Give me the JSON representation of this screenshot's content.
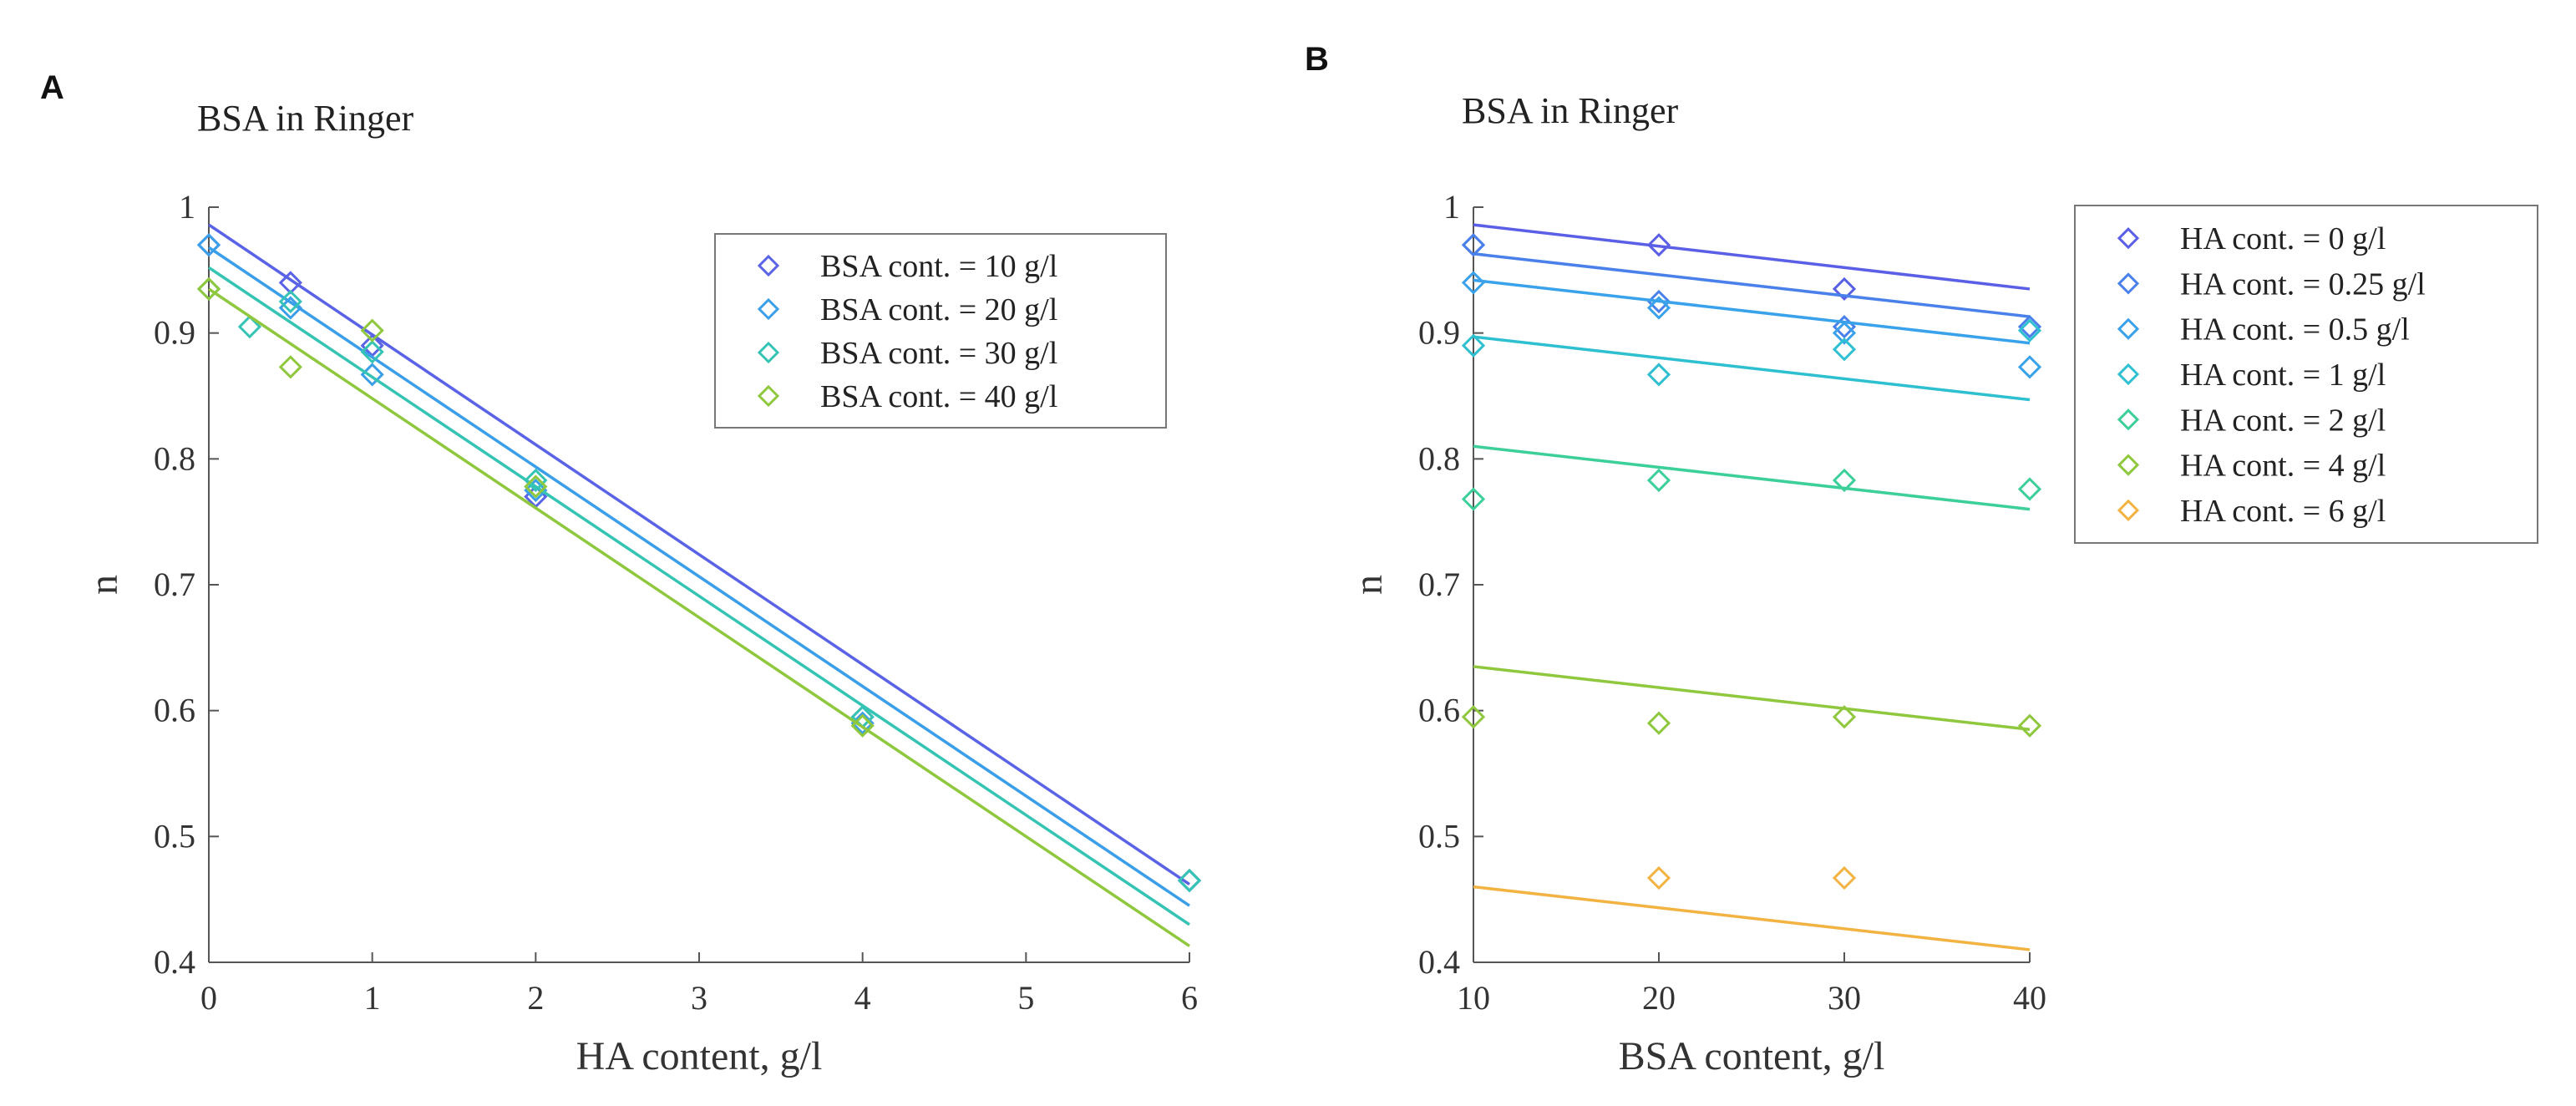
{
  "chart_data": [
    {
      "panel": "A",
      "type": "scatter",
      "title": "BSA in Ringer",
      "xlabel": "HA content, g/l",
      "ylabel": "n",
      "xlim": [
        0,
        6
      ],
      "ylim": [
        0.4,
        1
      ],
      "xticks": [
        "0",
        "1",
        "2",
        "3",
        "4",
        "5",
        "6"
      ],
      "yticks": [
        "0.4",
        "0.5",
        "0.6",
        "0.7",
        "0.8",
        "0.9",
        "1"
      ],
      "grid": false,
      "legend_position": "top-right",
      "series": [
        {
          "name": "BSA cont. = 10 g/l",
          "color": "#5a63e6",
          "points": [
            [
              0,
              0.97
            ],
            [
              0.5,
              0.94
            ],
            [
              1,
              0.89
            ],
            [
              2,
              0.77
            ],
            [
              4,
              0.595
            ],
            [
              6,
              0.465
            ]
          ],
          "fit": [
            [
              0,
              0.986
            ],
            [
              6,
              0.462
            ]
          ]
        },
        {
          "name": "BSA cont. = 20 g/l",
          "color": "#3a9ee8",
          "points": [
            [
              0,
              0.97
            ],
            [
              0.5,
              0.92
            ],
            [
              1,
              0.867
            ],
            [
              2,
              0.775
            ],
            [
              4,
              0.59
            ],
            [
              6,
              0.465
            ]
          ],
          "fit": [
            [
              0,
              0.968
            ],
            [
              6,
              0.445
            ]
          ]
        },
        {
          "name": "BSA cont. = 30 g/l",
          "color": "#35c4b4",
          "points": [
            [
              0,
              0.935
            ],
            [
              0.25,
              0.905
            ],
            [
              0.5,
              0.925
            ],
            [
              1,
              0.885
            ],
            [
              2,
              0.783
            ],
            [
              4,
              0.595
            ],
            [
              6,
              0.465
            ]
          ],
          "fit": [
            [
              0,
              0.952
            ],
            [
              6,
              0.43
            ]
          ]
        },
        {
          "name": "BSA cont. = 40 g/l",
          "color": "#8fc83e",
          "points": [
            [
              0,
              0.935
            ],
            [
              0.5,
              0.873
            ],
            [
              1,
              0.902
            ],
            [
              2,
              0.778
            ],
            [
              4,
              0.588
            ]
          ],
          "fit": [
            [
              0,
              0.935
            ],
            [
              6,
              0.413
            ]
          ]
        }
      ]
    },
    {
      "panel": "B",
      "type": "scatter",
      "title": "BSA in Ringer",
      "xlabel": "BSA content, g/l",
      "ylabel": "n",
      "xlim": [
        10,
        40
      ],
      "ylim": [
        0.4,
        1
      ],
      "xticks": [
        "10",
        "20",
        "30",
        "40"
      ],
      "yticks": [
        "0.4",
        "0.5",
        "0.6",
        "0.7",
        "0.8",
        "0.9",
        "1"
      ],
      "grid": false,
      "legend_position": "outside-right",
      "series": [
        {
          "name": "HA cont. = 0 g/l",
          "color": "#5a5fe6",
          "points": [
            [
              10,
              0.97
            ],
            [
              20,
              0.97
            ],
            [
              30,
              0.935
            ]
          ],
          "fit": [
            [
              10,
              0.986
            ],
            [
              40,
              0.935
            ]
          ]
        },
        {
          "name": "HA cont. = 0.25 g/l",
          "color": "#4a80ea",
          "points": [
            [
              10,
              0.97
            ],
            [
              20,
              0.925
            ],
            [
              30,
              0.905
            ],
            [
              40,
              0.905
            ]
          ],
          "fit": [
            [
              10,
              0.963
            ],
            [
              40,
              0.913
            ]
          ]
        },
        {
          "name": "HA cont. = 0.5 g/l",
          "color": "#3aa2ea",
          "points": [
            [
              10,
              0.94
            ],
            [
              20,
              0.92
            ],
            [
              30,
              0.9
            ],
            [
              40,
              0.873
            ]
          ],
          "fit": [
            [
              10,
              0.942
            ],
            [
              40,
              0.892
            ]
          ]
        },
        {
          "name": "HA cont. = 1 g/l",
          "color": "#2ec0d0",
          "points": [
            [
              10,
              0.89
            ],
            [
              20,
              0.867
            ],
            [
              30,
              0.887
            ],
            [
              40,
              0.902
            ]
          ],
          "fit": [
            [
              10,
              0.897
            ],
            [
              40,
              0.847
            ]
          ]
        },
        {
          "name": "HA cont. = 2 g/l",
          "color": "#3dcf9a",
          "points": [
            [
              10,
              0.768
            ],
            [
              20,
              0.783
            ],
            [
              30,
              0.783
            ],
            [
              40,
              0.776
            ]
          ],
          "fit": [
            [
              10,
              0.81
            ],
            [
              40,
              0.76
            ]
          ]
        },
        {
          "name": "HA cont. = 4 g/l",
          "color": "#8fc83e",
          "points": [
            [
              10,
              0.595
            ],
            [
              20,
              0.59
            ],
            [
              30,
              0.595
            ],
            [
              40,
              0.588
            ]
          ],
          "fit": [
            [
              10,
              0.635
            ],
            [
              40,
              0.585
            ]
          ]
        },
        {
          "name": "HA cont. = 6 g/l",
          "color": "#f3b343",
          "points": [
            [
              20,
              0.467
            ],
            [
              30,
              0.467
            ]
          ],
          "fit": [
            [
              10,
              0.46
            ],
            [
              40,
              0.41
            ]
          ]
        }
      ]
    }
  ]
}
